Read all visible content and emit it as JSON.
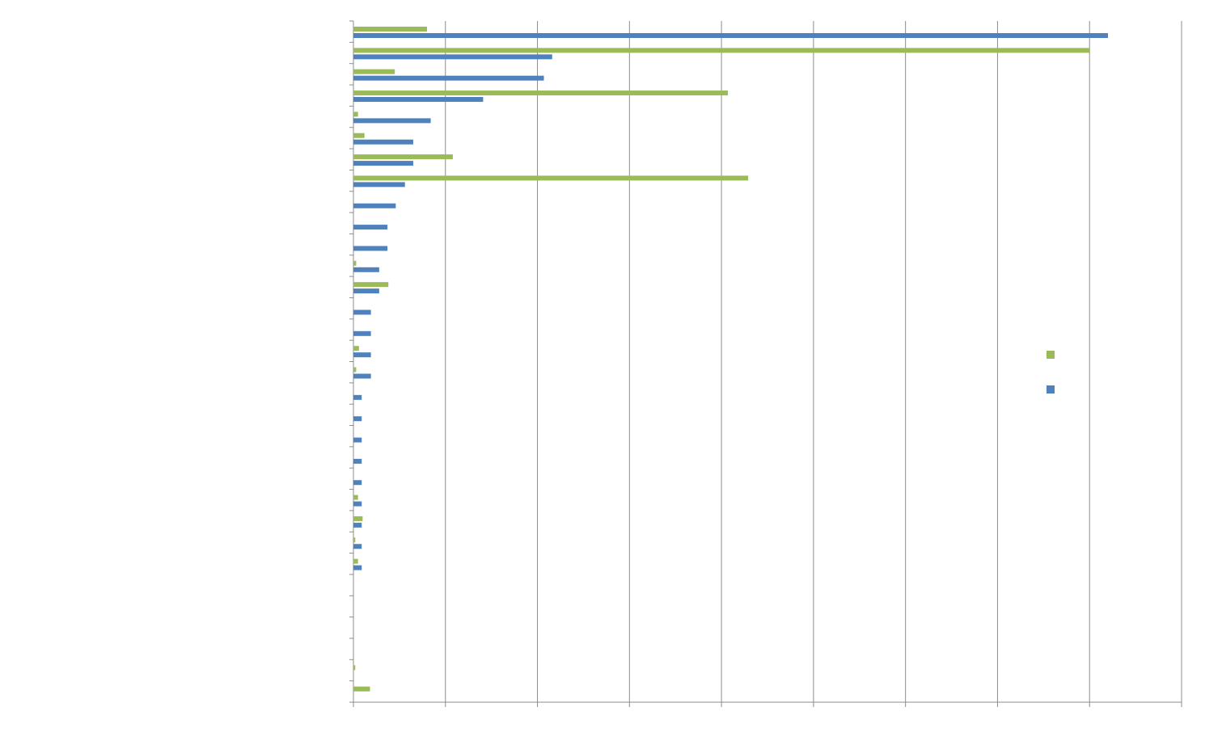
{
  "chart_data": {
    "type": "bar",
    "orientation": "horizontal",
    "grouping": "clustered",
    "title": "",
    "xlabel": "",
    "ylabel": "",
    "xlim": [
      0,
      9
    ],
    "x_major_step": 1,
    "grid": {
      "vertical": true,
      "horizontal": false
    },
    "legend_position": "right",
    "categories": [
      "",
      "",
      "",
      "",
      "",
      "",
      "",
      "",
      "",
      "",
      "",
      "",
      "",
      "",
      "",
      "",
      "",
      "",
      "",
      "",
      "",
      "",
      "",
      "",
      "",
      "",
      "",
      "",
      "",
      "",
      "",
      ""
    ],
    "series": [
      {
        "color": "#9BBB59",
        "values": [
          0.8,
          8.0,
          0.45,
          4.07,
          0.05,
          0.12,
          1.08,
          4.29,
          0,
          0,
          0,
          0.03,
          0.38,
          0,
          0,
          0.06,
          0.03,
          0,
          0,
          0,
          0,
          0,
          0.05,
          0.1,
          0.02,
          0.05,
          0,
          0,
          0,
          0,
          0.02,
          0.18
        ]
      },
      {
        "color": "#4F81BD",
        "values": [
          8.2,
          2.16,
          2.07,
          1.41,
          0.84,
          0.65,
          0.65,
          0.56,
          0.46,
          0.37,
          0.37,
          0.28,
          0.28,
          0.19,
          0.19,
          0.19,
          0.19,
          0.09,
          0.09,
          0.09,
          0.09,
          0.09,
          0.09,
          0.09,
          0.09,
          0.09,
          0,
          0,
          0,
          0,
          0,
          0
        ]
      }
    ]
  }
}
